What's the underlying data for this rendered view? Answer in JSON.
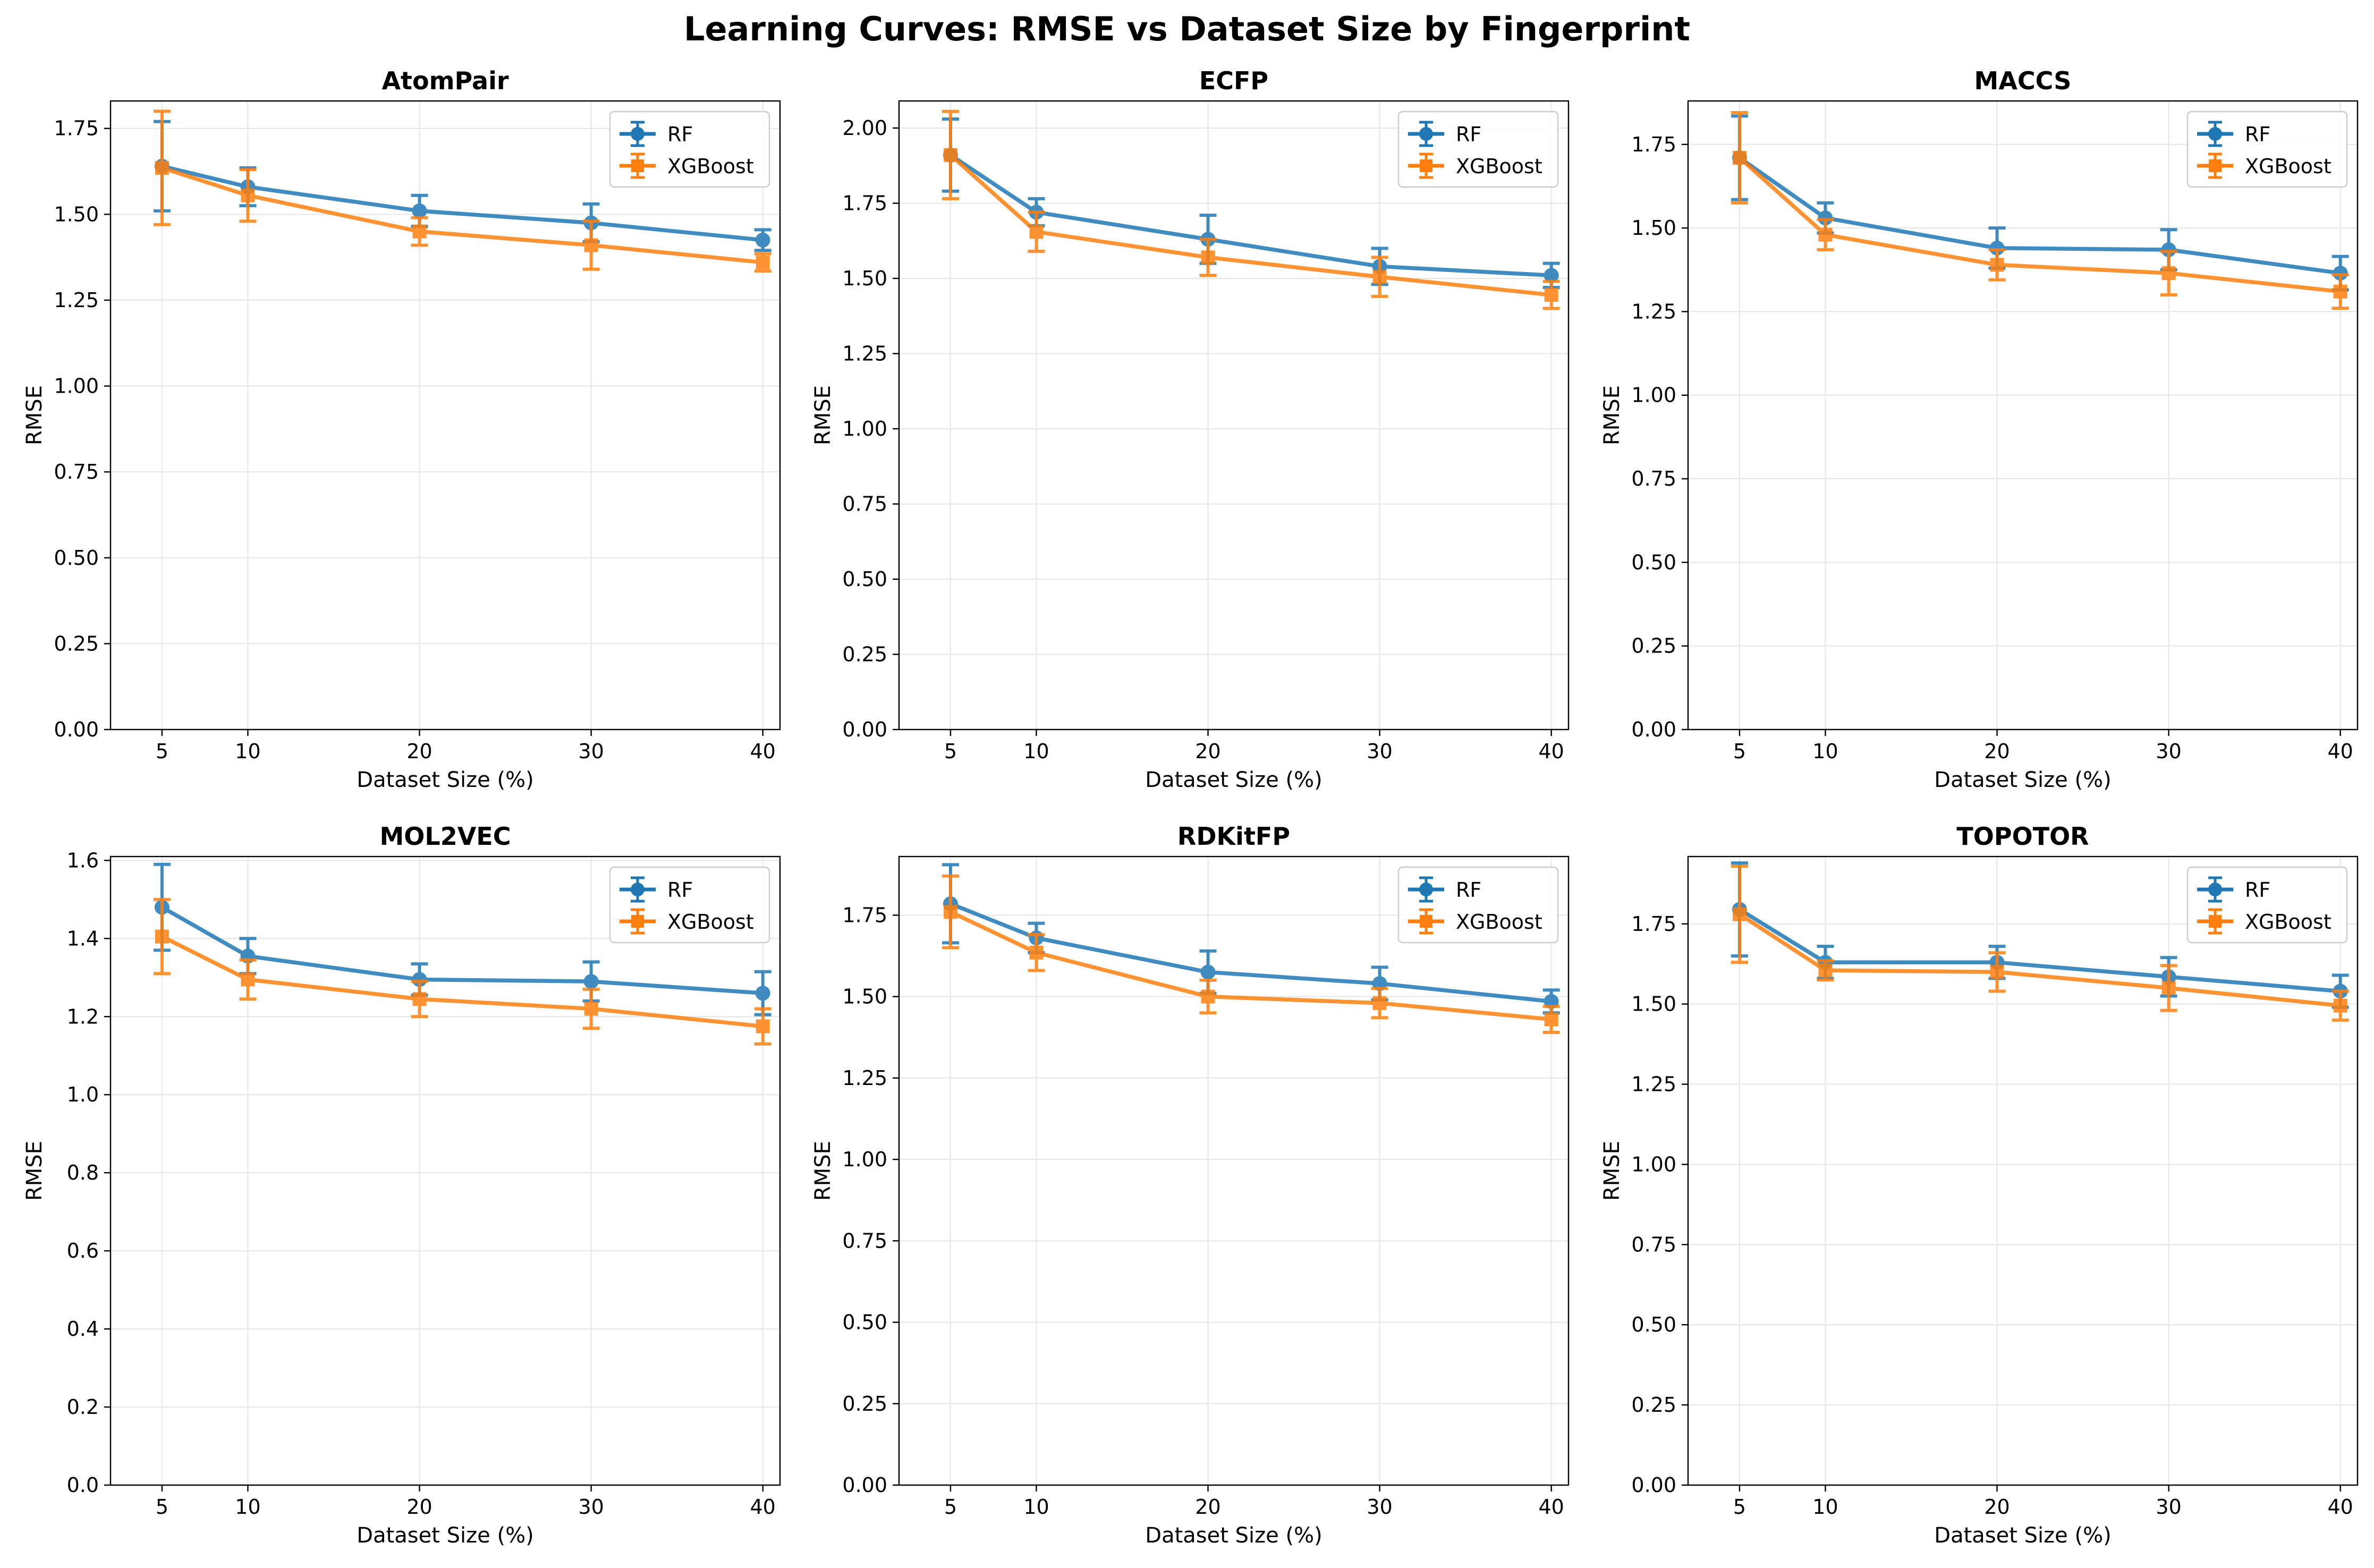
{
  "figure": {
    "title": "Learning Curves: RMSE vs Dataset Size by Fingerprint"
  },
  "colors": {
    "RF": "#1f77b4",
    "XGBoost": "#ff7f0e",
    "grid": "#e6e6e6",
    "axes": "#000000"
  },
  "chart_data": [
    {
      "type": "line",
      "title": "AtomPair",
      "xlabel": "Dataset Size (%)",
      "ylabel": "RMSE",
      "x": [
        5,
        10,
        20,
        30,
        40
      ],
      "xlim": [
        2,
        41
      ],
      "ylim": [
        0,
        1.83
      ],
      "yticks": [
        0.0,
        0.25,
        0.5,
        0.75,
        1.0,
        1.25,
        1.5,
        1.75
      ],
      "ytick_labels": [
        "0.00",
        "0.25",
        "0.50",
        "0.75",
        "1.00",
        "1.25",
        "1.50",
        "1.75"
      ],
      "xticks": [
        5,
        10,
        20,
        30,
        40
      ],
      "xtick_labels": [
        "5",
        "10",
        "20",
        "30",
        "40"
      ],
      "grid": true,
      "legend_position": "top-right",
      "series": [
        {
          "name": "RF",
          "marker": "circle",
          "values": [
            1.64,
            1.58,
            1.51,
            1.475,
            1.425
          ],
          "errors": [
            0.13,
            0.055,
            0.045,
            0.055,
            0.03
          ]
        },
        {
          "name": "XGBoost",
          "marker": "square",
          "values": [
            1.635,
            1.555,
            1.45,
            1.41,
            1.36
          ],
          "errors": [
            0.165,
            0.075,
            0.04,
            0.07,
            0.025
          ]
        }
      ]
    },
    {
      "type": "line",
      "title": "ECFP",
      "xlabel": "Dataset Size (%)",
      "ylabel": "RMSE",
      "x": [
        5,
        10,
        20,
        30,
        40
      ],
      "xlim": [
        2,
        41
      ],
      "ylim": [
        0,
        2.09
      ],
      "yticks": [
        0.0,
        0.25,
        0.5,
        0.75,
        1.0,
        1.25,
        1.5,
        1.75,
        2.0
      ],
      "ytick_labels": [
        "0.00",
        "0.25",
        "0.50",
        "0.75",
        "1.00",
        "1.25",
        "1.50",
        "1.75",
        "2.00"
      ],
      "xticks": [
        5,
        10,
        20,
        30,
        40
      ],
      "xtick_labels": [
        "5",
        "10",
        "20",
        "30",
        "40"
      ],
      "grid": true,
      "legend_position": "top-right",
      "series": [
        {
          "name": "RF",
          "marker": "circle",
          "values": [
            1.91,
            1.72,
            1.63,
            1.54,
            1.51
          ],
          "errors": [
            0.12,
            0.045,
            0.08,
            0.06,
            0.04
          ]
        },
        {
          "name": "XGBoost",
          "marker": "square",
          "values": [
            1.91,
            1.655,
            1.57,
            1.505,
            1.445
          ],
          "errors": [
            0.145,
            0.065,
            0.06,
            0.065,
            0.045
          ]
        }
      ]
    },
    {
      "type": "line",
      "title": "MACCS",
      "xlabel": "Dataset Size (%)",
      "ylabel": "RMSE",
      "x": [
        5,
        10,
        20,
        30,
        40
      ],
      "xlim": [
        2,
        41
      ],
      "ylim": [
        0,
        1.88
      ],
      "yticks": [
        0.0,
        0.25,
        0.5,
        0.75,
        1.0,
        1.25,
        1.5,
        1.75
      ],
      "ytick_labels": [
        "0.00",
        "0.25",
        "0.50",
        "0.75",
        "1.00",
        "1.25",
        "1.50",
        "1.75"
      ],
      "xticks": [
        5,
        10,
        20,
        30,
        40
      ],
      "xtick_labels": [
        "5",
        "10",
        "20",
        "30",
        "40"
      ],
      "grid": true,
      "legend_position": "top-right",
      "series": [
        {
          "name": "RF",
          "marker": "circle",
          "values": [
            1.71,
            1.53,
            1.44,
            1.435,
            1.365
          ],
          "errors": [
            0.125,
            0.045,
            0.06,
            0.06,
            0.05
          ]
        },
        {
          "name": "XGBoost",
          "marker": "square",
          "values": [
            1.71,
            1.48,
            1.39,
            1.365,
            1.31
          ],
          "errors": [
            0.135,
            0.045,
            0.045,
            0.065,
            0.05
          ]
        }
      ]
    },
    {
      "type": "line",
      "title": "MOL2VEC",
      "xlabel": "Dataset Size (%)",
      "ylabel": "RMSE",
      "x": [
        5,
        10,
        20,
        30,
        40
      ],
      "xlim": [
        2,
        41
      ],
      "ylim": [
        0,
        1.61
      ],
      "yticks": [
        0.0,
        0.2,
        0.4,
        0.6,
        0.8,
        1.0,
        1.2,
        1.4,
        1.6
      ],
      "ytick_labels": [
        "0.0",
        "0.2",
        "0.4",
        "0.6",
        "0.8",
        "1.0",
        "1.2",
        "1.4",
        "1.6"
      ],
      "xticks": [
        5,
        10,
        20,
        30,
        40
      ],
      "xtick_labels": [
        "5",
        "10",
        "20",
        "30",
        "40"
      ],
      "grid": true,
      "legend_position": "top-right",
      "series": [
        {
          "name": "RF",
          "marker": "circle",
          "values": [
            1.48,
            1.355,
            1.295,
            1.29,
            1.26
          ],
          "errors": [
            0.11,
            0.045,
            0.04,
            0.05,
            0.055
          ]
        },
        {
          "name": "XGBoost",
          "marker": "square",
          "values": [
            1.405,
            1.295,
            1.245,
            1.22,
            1.175
          ],
          "errors": [
            0.095,
            0.05,
            0.045,
            0.05,
            0.045
          ]
        }
      ]
    },
    {
      "type": "line",
      "title": "RDKitFP",
      "xlabel": "Dataset Size (%)",
      "ylabel": "RMSE",
      "x": [
        5,
        10,
        20,
        30,
        40
      ],
      "xlim": [
        2,
        41
      ],
      "ylim": [
        0,
        1.93
      ],
      "yticks": [
        0.0,
        0.25,
        0.5,
        0.75,
        1.0,
        1.25,
        1.5,
        1.75
      ],
      "ytick_labels": [
        "0.00",
        "0.25",
        "0.50",
        "0.75",
        "1.00",
        "1.25",
        "1.50",
        "1.75"
      ],
      "xticks": [
        5,
        10,
        20,
        30,
        40
      ],
      "xtick_labels": [
        "5",
        "10",
        "20",
        "30",
        "40"
      ],
      "grid": true,
      "legend_position": "top-right",
      "series": [
        {
          "name": "RF",
          "marker": "circle",
          "values": [
            1.785,
            1.68,
            1.575,
            1.54,
            1.485
          ],
          "errors": [
            0.12,
            0.045,
            0.065,
            0.05,
            0.035
          ]
        },
        {
          "name": "XGBoost",
          "marker": "square",
          "values": [
            1.76,
            1.635,
            1.5,
            1.48,
            1.43
          ],
          "errors": [
            0.11,
            0.055,
            0.05,
            0.045,
            0.04
          ]
        }
      ]
    },
    {
      "type": "line",
      "title": "TOPOTOR",
      "xlabel": "Dataset Size (%)",
      "ylabel": "RMSE",
      "x": [
        5,
        10,
        20,
        30,
        40
      ],
      "xlim": [
        2,
        41
      ],
      "ylim": [
        0,
        1.96
      ],
      "yticks": [
        0.0,
        0.25,
        0.5,
        0.75,
        1.0,
        1.25,
        1.5,
        1.75
      ],
      "ytick_labels": [
        "0.00",
        "0.25",
        "0.50",
        "0.75",
        "1.00",
        "1.25",
        "1.50",
        "1.75"
      ],
      "xticks": [
        5,
        10,
        20,
        30,
        40
      ],
      "xtick_labels": [
        "5",
        "10",
        "20",
        "30",
        "40"
      ],
      "grid": true,
      "legend_position": "top-right",
      "series": [
        {
          "name": "RF",
          "marker": "circle",
          "values": [
            1.795,
            1.63,
            1.63,
            1.585,
            1.54
          ],
          "errors": [
            0.145,
            0.05,
            0.05,
            0.06,
            0.05
          ]
        },
        {
          "name": "XGBoost",
          "marker": "square",
          "values": [
            1.78,
            1.605,
            1.6,
            1.55,
            1.495
          ],
          "errors": [
            0.15,
            0.03,
            0.06,
            0.07,
            0.045
          ]
        }
      ]
    }
  ]
}
